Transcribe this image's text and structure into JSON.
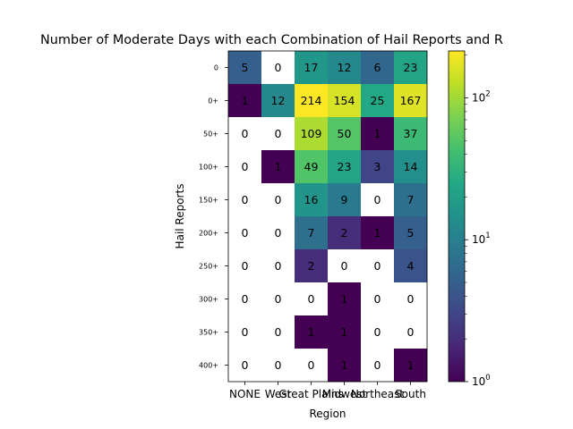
{
  "chart_data": {
    "type": "heatmap",
    "title": "Number of Moderate Days with each Combination of Hail Reports and R",
    "xlabel": "Region",
    "ylabel": "Hail Reports",
    "x_categories": [
      "NONE",
      "West",
      "Great Plains",
      "Midwest",
      "Northeast",
      "South"
    ],
    "y_categories": [
      "0",
      "0+",
      "50+",
      "100+",
      "150+",
      "200+",
      "250+",
      "300+",
      "350+",
      "400+"
    ],
    "values": [
      [
        5,
        0,
        17,
        12,
        6,
        23
      ],
      [
        1,
        12,
        214,
        154,
        25,
        167
      ],
      [
        0,
        0,
        109,
        50,
        1,
        37
      ],
      [
        0,
        1,
        49,
        23,
        3,
        14
      ],
      [
        0,
        0,
        16,
        9,
        0,
        7
      ],
      [
        0,
        0,
        7,
        2,
        1,
        5
      ],
      [
        0,
        0,
        2,
        0,
        0,
        4
      ],
      [
        0,
        0,
        0,
        1,
        0,
        0
      ],
      [
        0,
        0,
        1,
        1,
        0,
        0
      ],
      [
        0,
        0,
        0,
        1,
        0,
        1
      ]
    ],
    "color_scale": "log",
    "colormap": "viridis",
    "zero_color": "#ffffff",
    "colorbar": {
      "range": [
        1,
        214
      ],
      "ticks": [
        {
          "value": 1,
          "base": "10",
          "exp": "0"
        },
        {
          "value": 10,
          "base": "10",
          "exp": "1"
        },
        {
          "value": 100,
          "base": "10",
          "exp": "2"
        }
      ]
    }
  }
}
